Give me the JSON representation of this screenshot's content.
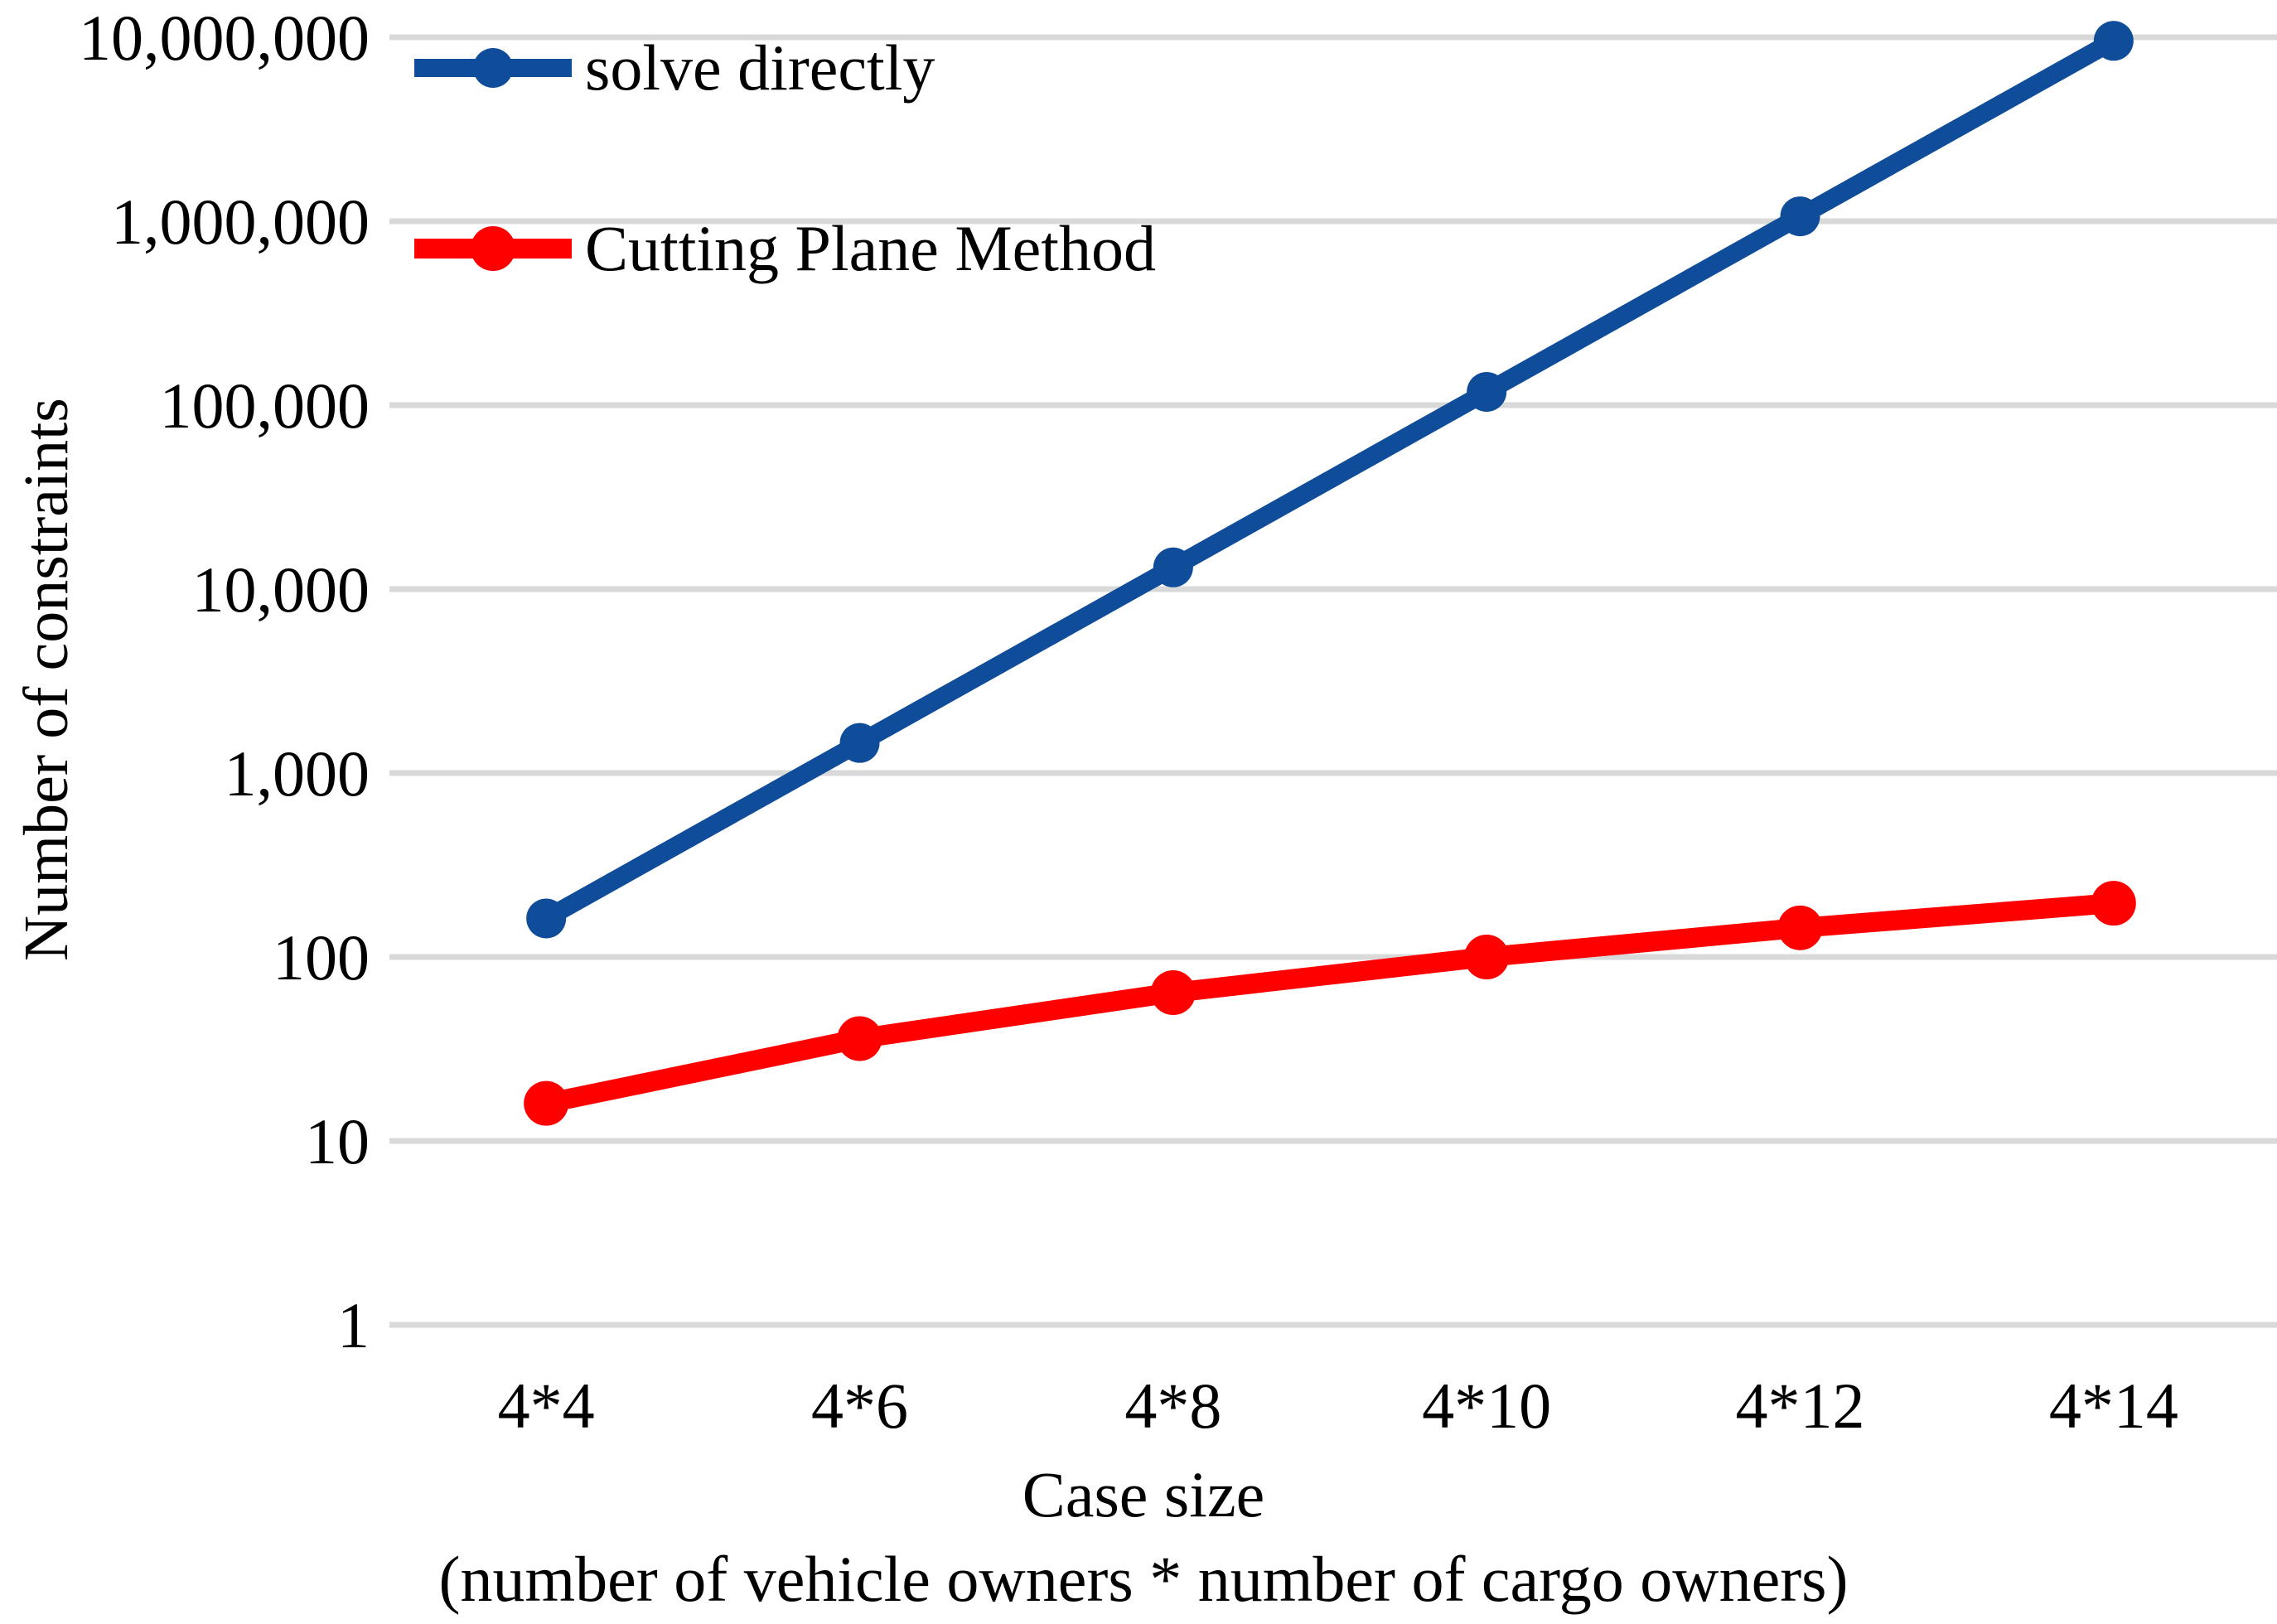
{
  "chart_data": {
    "type": "line",
    "title": "",
    "xlabel_line1": "Case size",
    "xlabel_line2": "(number of vehicle owners * number of cargo owners)",
    "ylabel": "Number of constraints",
    "categories": [
      "4*4",
      "4*6",
      "4*8",
      "4*10",
      "4*12",
      "4*14"
    ],
    "y_ticks": [
      "10,000,000",
      "1,000,000",
      "100,000",
      "10,000",
      "1,000",
      "100",
      "10",
      "1"
    ],
    "y_scale": "log10",
    "ylim": [
      1,
      10000000
    ],
    "grid": "horizontal-decade-lines",
    "legend_position": "top-left-inside",
    "series": [
      {
        "name": "solve directly",
        "color": "#0F4D9A",
        "marker": "circle",
        "values": [
          162,
          1458,
          13122,
          118098,
          1062882,
          9565938
        ]
      },
      {
        "name": "Cutting Plane Method",
        "color": "#FE0000",
        "marker": "circle",
        "values": [
          16,
          36,
          64,
          100,
          144,
          196
        ]
      }
    ]
  },
  "colors": {
    "background": "#FFFFFF",
    "gridline": "#D9D9D9",
    "text": "#000000"
  }
}
